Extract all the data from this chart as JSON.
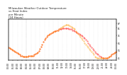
{
  "title_line1": "Milwaukee Weather Outdoor Temperature",
  "title_line2": "vs Heat Index",
  "title_line3": "per Minute",
  "title_line4": "(24 Hours)",
  "title_fontsize": 2.8,
  "bg_color": "#ffffff",
  "line_color_temp": "#ff0000",
  "line_color_heat": "#ff9900",
  "ylim": [
    38,
    93
  ],
  "xlim": [
    0,
    1440
  ],
  "ytick_values": [
    41,
    51,
    61,
    71,
    81,
    87
  ],
  "tick_fontsize": 2.2,
  "grid_color": "#bbbbbb",
  "vline_x": 235,
  "vline_color": "#aaaaaa",
  "minutes_total": 1440,
  "xtick_interval": 60,
  "temp_curve_x": [
    0,
    15,
    30,
    45,
    60,
    75,
    90,
    105,
    120,
    135,
    150,
    165,
    180,
    195,
    210,
    225,
    240,
    255,
    270,
    285,
    300,
    315,
    330,
    345,
    360,
    375,
    390,
    405,
    420,
    435,
    450,
    465,
    480,
    495,
    510,
    525,
    540,
    555,
    570,
    585,
    600,
    615,
    630,
    645,
    660,
    675,
    690,
    705,
    720,
    735,
    750,
    765,
    780,
    795,
    810,
    825,
    840,
    855,
    870,
    885,
    900,
    915,
    930,
    945,
    960,
    975,
    990,
    1005,
    1020,
    1035,
    1050,
    1065,
    1080,
    1095,
    1110,
    1125,
    1140,
    1155,
    1170,
    1185,
    1200,
    1215,
    1230,
    1245,
    1260,
    1275,
    1290,
    1305,
    1320,
    1335,
    1350,
    1365,
    1380,
    1395,
    1410,
    1425,
    1440
  ],
  "temp_curve_y": [
    55,
    54,
    53,
    52,
    51,
    50,
    49,
    48,
    47,
    46,
    45,
    44,
    44,
    43,
    43,
    43,
    43,
    43,
    44,
    44,
    44,
    44,
    44,
    45,
    46,
    47,
    48,
    50,
    53,
    56,
    59,
    62,
    65,
    67,
    69,
    71,
    72,
    73,
    74,
    75,
    76,
    77,
    77,
    78,
    78,
    79,
    79,
    79,
    80,
    80,
    80,
    80,
    80,
    80,
    79,
    79,
    79,
    78,
    78,
    77,
    76,
    75,
    74,
    73,
    72,
    71,
    70,
    68,
    67,
    65,
    63,
    61,
    59,
    57,
    55,
    53,
    51,
    49,
    47,
    46,
    45,
    44,
    43,
    42,
    41,
    41,
    41,
    41,
    41,
    42,
    43,
    44,
    45,
    46,
    47,
    48,
    49
  ],
  "heat_curve_y": [
    55,
    54,
    53,
    52,
    51,
    50,
    49,
    48,
    47,
    46,
    45,
    44,
    44,
    43,
    43,
    43,
    43,
    43,
    44,
    44,
    44,
    44,
    44,
    45,
    46,
    47,
    48,
    50,
    53,
    56,
    59,
    62,
    65,
    67,
    69,
    71,
    72,
    73,
    74,
    75,
    76,
    77,
    77,
    78,
    78,
    79,
    80,
    81,
    82,
    83,
    84,
    85,
    85,
    85,
    84,
    83,
    82,
    81,
    80,
    79,
    77,
    75,
    73,
    71,
    69,
    67,
    65,
    63,
    61,
    59,
    57,
    55,
    53,
    51,
    49,
    47,
    45,
    43,
    42,
    41,
    41,
    41,
    41,
    41,
    41,
    41,
    41,
    41,
    41,
    42,
    43,
    44,
    45,
    46,
    47,
    48,
    49
  ]
}
